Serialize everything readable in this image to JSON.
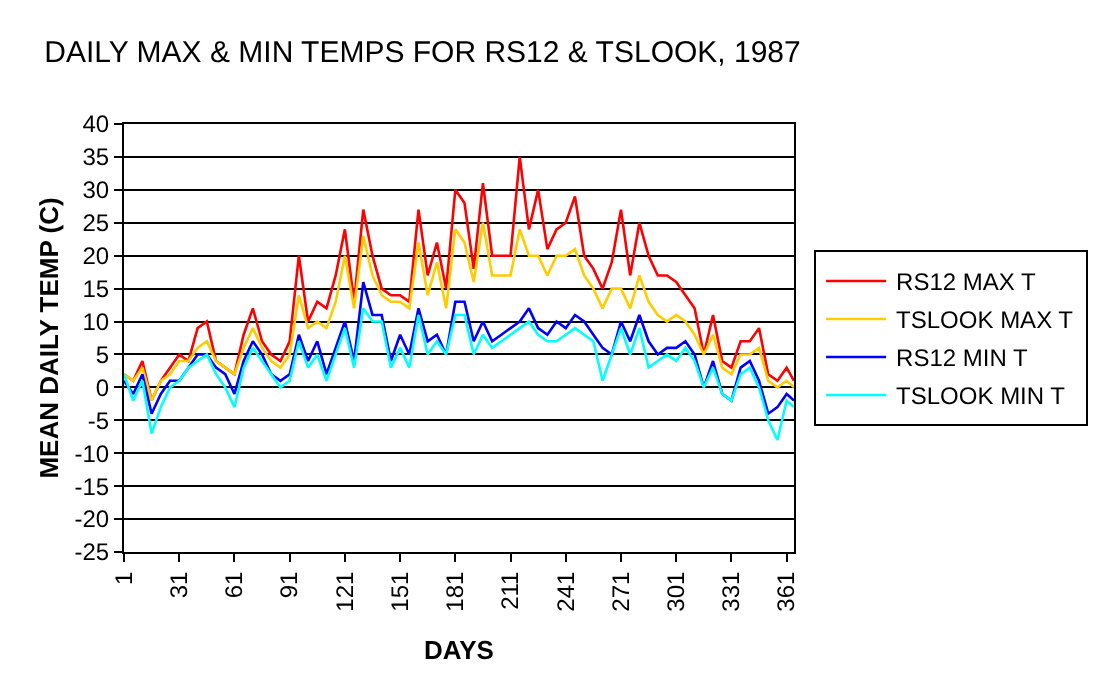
{
  "chart_data": {
    "type": "line",
    "title": "DAILY MAX & MIN TEMPS FOR RS12 & TSLOOK, 1987",
    "xlabel": "DAYS",
    "ylabel": "MEAN DAILY TEMP (C)",
    "x": [
      1,
      6,
      11,
      16,
      21,
      26,
      31,
      36,
      41,
      46,
      51,
      56,
      61,
      66,
      71,
      76,
      81,
      86,
      91,
      96,
      101,
      106,
      111,
      116,
      121,
      126,
      131,
      136,
      141,
      146,
      151,
      156,
      161,
      166,
      171,
      176,
      181,
      186,
      191,
      196,
      201,
      206,
      211,
      216,
      221,
      226,
      231,
      236,
      241,
      246,
      251,
      256,
      261,
      266,
      271,
      276,
      281,
      286,
      291,
      296,
      301,
      306,
      311,
      316,
      321,
      326,
      331,
      336,
      341,
      346,
      351,
      356,
      361,
      365
    ],
    "series": [
      {
        "name": "RS12 MAX T",
        "color": "#ff0000",
        "values": [
          2,
          1,
          4,
          -2,
          1,
          3,
          5,
          4,
          9,
          10,
          4,
          3,
          2,
          8,
          12,
          7,
          5,
          4,
          7,
          20,
          10,
          13,
          12,
          17,
          24,
          13,
          27,
          20,
          15,
          14,
          14,
          13,
          27,
          17,
          22,
          15,
          30,
          28,
          18,
          31,
          20,
          20,
          20,
          35,
          24,
          30,
          21,
          24,
          25,
          29,
          20,
          18,
          15,
          19,
          27,
          17,
          25,
          20,
          17,
          17,
          16,
          14,
          12,
          5,
          11,
          4,
          3,
          7,
          7,
          9,
          2,
          1,
          3,
          1
        ]
      },
      {
        "name": "TSLOOK MAX T",
        "color": "#ffcc00",
        "values": [
          2,
          1,
          3,
          -2,
          1,
          2,
          4,
          4,
          6,
          7,
          4,
          3,
          2,
          6,
          9,
          6,
          4,
          3,
          5,
          14,
          9,
          10,
          9,
          13,
          20,
          12,
          23,
          17,
          14,
          13,
          13,
          12,
          22,
          14,
          19,
          12,
          24,
          22,
          16,
          25,
          17,
          17,
          17,
          24,
          20,
          20,
          17,
          20,
          20,
          21,
          17,
          15,
          12,
          15,
          15,
          12,
          17,
          13,
          11,
          10,
          11,
          10,
          8,
          5,
          8,
          3,
          2,
          5,
          5,
          6,
          1,
          0,
          1,
          0
        ]
      },
      {
        "name": "RS12 MIN T",
        "color": "#0000ff",
        "values": [
          1,
          -1,
          2,
          -4,
          -1,
          1,
          1,
          3,
          5,
          5,
          3,
          2,
          -1,
          4,
          7,
          5,
          2,
          1,
          2,
          8,
          4,
          7,
          2,
          6,
          10,
          4,
          16,
          11,
          11,
          4,
          8,
          5,
          12,
          7,
          8,
          5,
          13,
          13,
          7,
          10,
          7,
          8,
          9,
          10,
          12,
          9,
          8,
          10,
          9,
          11,
          10,
          8,
          6,
          5,
          10,
          7,
          11,
          7,
          5,
          6,
          6,
          7,
          5,
          0,
          4,
          -1,
          -2,
          3,
          4,
          1,
          -4,
          -3,
          -1,
          -2
        ]
      },
      {
        "name": "TSLOOK MIN T",
        "color": "#00ffff",
        "values": [
          2,
          -2,
          1,
          -7,
          -3,
          0,
          1,
          3,
          4,
          5,
          2,
          0,
          -3,
          3,
          6,
          4,
          2,
          0,
          1,
          7,
          3,
          5,
          1,
          5,
          9,
          3,
          12,
          10,
          10,
          3,
          6,
          3,
          11,
          5,
          7,
          5,
          11,
          11,
          5,
          8,
          6,
          7,
          8,
          9,
          10,
          8,
          7,
          7,
          8,
          9,
          8,
          7,
          1,
          5,
          9,
          5,
          9,
          3,
          4,
          5,
          4,
          6,
          4,
          0,
          3,
          -1,
          -2,
          2,
          3,
          0,
          -5,
          -8,
          -2,
          -3
        ]
      }
    ],
    "xlim": [
      1,
      365
    ],
    "xticks": [
      1,
      31,
      61,
      91,
      121,
      151,
      181,
      211,
      241,
      271,
      301,
      331,
      361
    ],
    "ylim": [
      -25,
      40
    ],
    "yticks": [
      -25,
      -20,
      -15,
      -10,
      -5,
      0,
      5,
      10,
      15,
      20,
      25,
      30,
      35,
      40
    ],
    "grid": "y",
    "legend": "right",
    "marker": "none",
    "line_style": "solid"
  }
}
